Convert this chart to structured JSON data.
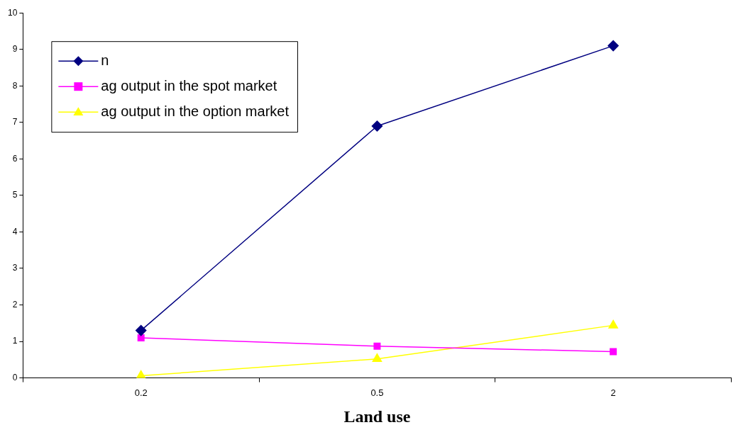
{
  "chart_data": {
    "type": "line",
    "xlabel": "Land use",
    "categories": [
      "0.2",
      "0.5",
      "2"
    ],
    "series": [
      {
        "name": "n",
        "color": "#000080",
        "values": [
          1.3,
          6.9,
          9.1
        ],
        "marker": "diamond"
      },
      {
        "name": "ag output in the spot market",
        "color": "#ff00ff",
        "values": [
          1.1,
          0.87,
          0.72
        ],
        "marker": "square"
      },
      {
        "name": "ag output in the option market",
        "color": "#ffff00",
        "values": [
          0.06,
          0.52,
          1.44
        ],
        "marker": "triangle"
      }
    ],
    "ylim": [
      0,
      10
    ],
    "yticks": [
      0,
      1,
      2,
      3,
      4,
      5,
      6,
      7,
      8,
      9,
      10
    ],
    "grid": false,
    "legend": "top left",
    "line_style": "solid"
  }
}
